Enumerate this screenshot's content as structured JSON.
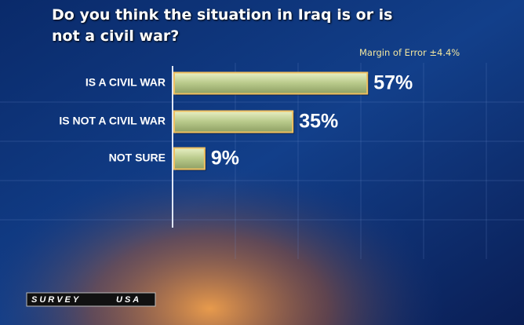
{
  "chart_data": {
    "type": "bar",
    "orientation": "horizontal",
    "title": "Do you think the situation in Iraq is or is not a civil war?",
    "annotation": "Margin of Error ±4.4%",
    "categories": [
      "IS A CIVIL WAR",
      "IS NOT A CIVIL WAR",
      "NOT SURE"
    ],
    "values": [
      57,
      35,
      9
    ],
    "value_labels": [
      "57%",
      "35%",
      "9%"
    ],
    "color": "#c4d49a",
    "source_logo": [
      "SURVEY",
      "USA"
    ]
  }
}
